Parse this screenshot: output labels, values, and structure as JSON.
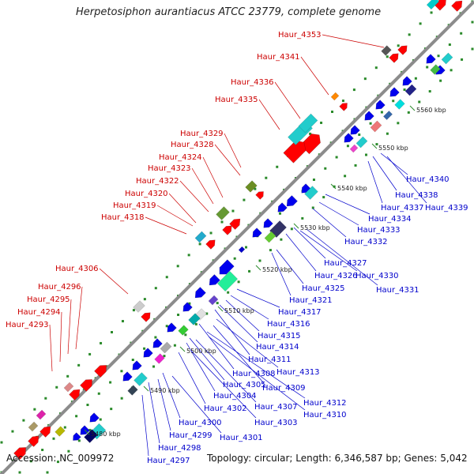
{
  "title": "Herpetosiphon aurantiacus ATCC 23779, complete genome",
  "footer": {
    "accession": "Accession: NC_009972",
    "topology": "Topology: circular; Length: 6,346,587 bp; Genes: 5,042"
  },
  "colors": {
    "backbone": "#8c8c8c",
    "upper_label": "#cc0000",
    "lower_label": "#0000cc",
    "forward_gene": "#ff0000",
    "reverse_gene": "#0000ee",
    "ruler_tick": "#2a8a2a"
  },
  "ruler": [
    "5480 kbp",
    "5490 kbp",
    "5500 kbp",
    "5510 kbp",
    "5520 kbp",
    "5530 kbp",
    "5540 kbp",
    "5550 kbp",
    "5560 kbp"
  ],
  "upper_labels": [
    "Haur_4353",
    "Haur_4341",
    "Haur_4336",
    "Haur_4335",
    "Haur_4329",
    "Haur_4328",
    "Haur_4324",
    "Haur_4323",
    "Haur_4322",
    "Haur_4320",
    "Haur_4319",
    "Haur_4318",
    "Haur_4306",
    "Haur_4296",
    "Haur_4295",
    "Haur_4294",
    "Haur_4293"
  ],
  "lower_labels": [
    "Haur_4340",
    "Haur_4338",
    "Haur_4339",
    "Haur_4337",
    "Haur_4334",
    "Haur_4333",
    "Haur_4332",
    "Haur_4327",
    "Haur_4326",
    "Haur_4330",
    "Haur_4331",
    "Haur_4325",
    "Haur_4321",
    "Haur_4317",
    "Haur_4316",
    "Haur_4315",
    "Haur_4314",
    "Haur_4311",
    "Haur_4313",
    "Haur_4308",
    "Haur_4309",
    "Haur_4305",
    "Haur_4304",
    "Haur_4312",
    "Haur_4307",
    "Haur_4310",
    "Haur_4302",
    "Haur_4303",
    "Haur_4300",
    "Haur_4301",
    "Haur_4299",
    "Haur_4298",
    "Haur_4297"
  ]
}
